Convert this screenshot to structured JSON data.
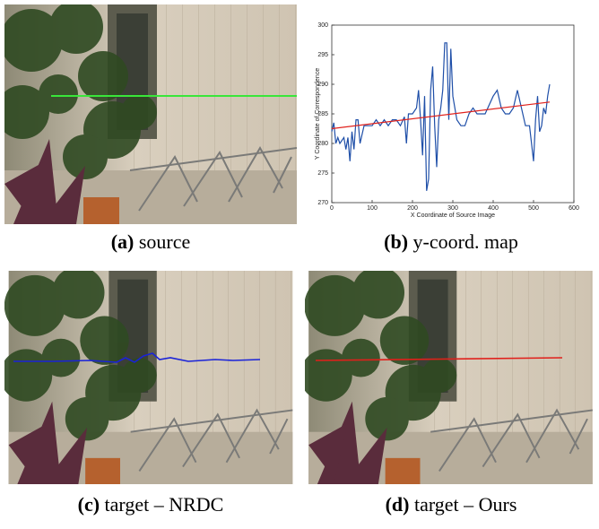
{
  "captions": [
    {
      "label": "(a)",
      "text": "source"
    },
    {
      "label": "(b)",
      "text": "y-coord. map"
    },
    {
      "label": "(c)",
      "text": "target – NRDC"
    },
    {
      "label": "(d)",
      "text": "target – Ours"
    }
  ],
  "chart_data": {
    "type": "line",
    "xlabel": "X Coordinate of Source Image",
    "ylabel": "Y Coordinate of Correspondence",
    "xlim": [
      0,
      600
    ],
    "xticks": [
      0,
      100,
      200,
      300,
      400,
      500,
      600
    ],
    "ylim": [
      270,
      300
    ],
    "yticks": [
      270,
      275,
      280,
      285,
      290,
      295,
      300
    ],
    "series": [
      {
        "color": "#1f4fa8",
        "x": [
          0,
          5,
          10,
          15,
          20,
          30,
          35,
          40,
          45,
          50,
          55,
          60,
          65,
          70,
          80,
          100,
          110,
          120,
          130,
          140,
          150,
          160,
          170,
          180,
          185,
          190,
          200,
          210,
          215,
          220,
          225,
          230,
          235,
          240,
          245,
          250,
          255,
          260,
          265,
          270,
          275,
          280,
          285,
          290,
          295,
          300,
          310,
          320,
          330,
          340,
          350,
          360,
          380,
          400,
          410,
          420,
          430,
          440,
          450,
          460,
          470,
          480,
          490,
          500,
          505,
          510,
          515,
          520,
          525,
          530,
          535,
          540
        ],
        "values": [
          282,
          283.5,
          280,
          281,
          280,
          281,
          279,
          281,
          277,
          282,
          279,
          284,
          284,
          280,
          283,
          283,
          284,
          283,
          284,
          283,
          284,
          284,
          283,
          284.5,
          280,
          285,
          285,
          286,
          289,
          284,
          278,
          288,
          272,
          274,
          289,
          293,
          283,
          276,
          284,
          286,
          289,
          297,
          297,
          284,
          296,
          288,
          284,
          283,
          283,
          285,
          286,
          285,
          285,
          288,
          289,
          286,
          285,
          285,
          286,
          289,
          286,
          283,
          283,
          277,
          284,
          288,
          282,
          283,
          286,
          285,
          288,
          290
        ]
      },
      {
        "color": "#e0201b",
        "x": [
          0,
          540
        ],
        "values": [
          282.5,
          287
        ]
      }
    ]
  }
}
